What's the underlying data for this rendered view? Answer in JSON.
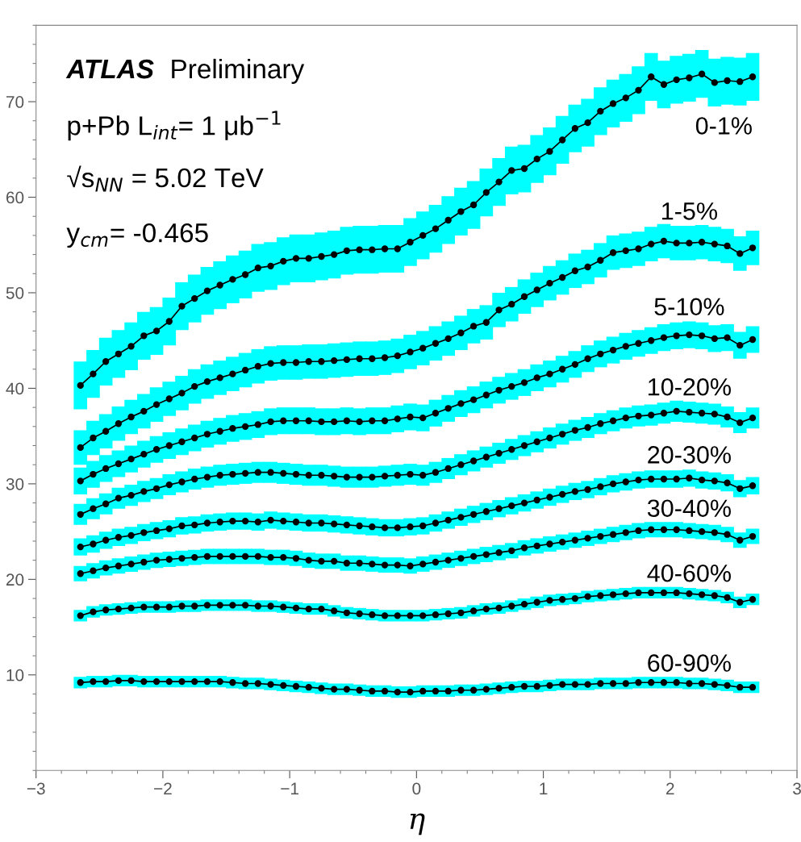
{
  "chart_data": {
    "type": "line",
    "xlabel": "η",
    "annotations": [
      "ATLAS",
      "Preliminary",
      "p+Pb L$_{int}$= 1 μb$^{−1}$",
      "√s$_{NN}$ = 5.02 TeV",
      "y$_{cm}$= -0.465"
    ],
    "x": [
      -2.65,
      -2.55,
      -2.45,
      -2.35,
      -2.25,
      -2.15,
      -2.05,
      -1.95,
      -1.85,
      -1.75,
      -1.65,
      -1.55,
      -1.45,
      -1.35,
      -1.25,
      -1.15,
      -1.05,
      -0.95,
      -0.85,
      -0.75,
      -0.65,
      -0.55,
      -0.45,
      -0.35,
      -0.25,
      -0.15,
      -0.05,
      0.05,
      0.15,
      0.25,
      0.35,
      0.45,
      0.55,
      0.65,
      0.75,
      0.85,
      0.95,
      1.05,
      1.15,
      1.25,
      1.35,
      1.45,
      1.55,
      1.65,
      1.75,
      1.85,
      1.95,
      2.05,
      2.15,
      2.25,
      2.35,
      2.45,
      2.55,
      2.65
    ],
    "series": [
      {
        "name": "0-1%",
        "color": "#000000",
        "values": [
          40.3,
          41.5,
          42.8,
          43.6,
          44.4,
          45.5,
          46.0,
          47.0,
          48.6,
          49.4,
          50.2,
          50.8,
          51.4,
          51.9,
          52.6,
          52.8,
          53.3,
          53.6,
          53.6,
          53.8,
          54.0,
          54.4,
          54.5,
          54.5,
          54.6,
          54.6,
          55.3,
          56.0,
          56.7,
          57.6,
          58.5,
          59.2,
          60.5,
          61.6,
          62.8,
          63.0,
          64.0,
          64.8,
          66.0,
          67.2,
          67.8,
          69.0,
          69.8,
          70.4,
          71.2,
          72.6,
          71.8,
          72.3,
          72.5,
          72.9,
          72.0,
          72.2,
          72.1,
          72.6
        ],
        "errors": [
          2.5,
          2.5,
          2.5,
          2.5,
          2.5,
          2.5,
          2.5,
          2.5,
          2.5,
          2.5,
          2.5,
          2.5,
          2.5,
          2.5,
          2.5,
          2.5,
          2.5,
          2.5,
          2.5,
          2.5,
          2.5,
          2.5,
          2.5,
          2.5,
          2.5,
          2.5,
          2.5,
          2.5,
          2.5,
          2.5,
          2.5,
          2.5,
          2.5,
          2.5,
          2.5,
          2.5,
          2.5,
          2.5,
          2.5,
          2.5,
          2.5,
          2.5,
          2.5,
          2.5,
          2.5,
          2.5,
          2.5,
          2.5,
          2.5,
          2.5,
          2.5,
          2.5,
          2.5,
          2.5
        ]
      },
      {
        "name": "1-5%",
        "color": "#000000",
        "values": [
          33.8,
          34.8,
          35.5,
          36.3,
          37.0,
          37.6,
          38.3,
          38.9,
          39.5,
          40.2,
          40.7,
          41.1,
          41.5,
          41.9,
          42.3,
          42.6,
          42.7,
          42.7,
          42.8,
          42.8,
          42.9,
          43.0,
          43.1,
          43.1,
          43.2,
          43.4,
          43.8,
          44.2,
          44.7,
          45.2,
          45.8,
          46.5,
          46.9,
          48.2,
          48.8,
          49.6,
          50.3,
          51.0,
          51.6,
          52.3,
          52.7,
          53.4,
          54.2,
          54.4,
          54.6,
          55.1,
          55.4,
          55.2,
          55.2,
          55.3,
          55.1,
          54.9,
          54.1,
          54.7
        ],
        "errors": [
          1.8,
          1.8,
          1.8,
          1.8,
          1.8,
          1.8,
          1.8,
          1.8,
          1.8,
          1.8,
          1.8,
          1.8,
          1.8,
          1.8,
          1.8,
          1.8,
          1.8,
          1.8,
          1.8,
          1.8,
          1.8,
          1.8,
          1.8,
          1.8,
          1.8,
          1.8,
          1.8,
          1.8,
          1.8,
          1.8,
          1.8,
          1.8,
          1.8,
          1.8,
          1.8,
          1.8,
          1.8,
          1.8,
          1.8,
          1.8,
          1.8,
          1.8,
          1.8,
          1.8,
          1.8,
          1.8,
          1.8,
          1.8,
          1.8,
          1.8,
          1.8,
          1.8,
          1.8,
          1.8
        ]
      },
      {
        "name": "5-10%",
        "color": "#000000",
        "values": [
          30.3,
          31.0,
          31.6,
          32.1,
          32.6,
          33.1,
          33.6,
          34.0,
          34.4,
          34.8,
          35.2,
          35.5,
          35.8,
          36.0,
          36.2,
          36.5,
          36.6,
          36.6,
          36.6,
          36.5,
          36.5,
          36.6,
          36.5,
          36.6,
          36.6,
          36.8,
          37.0,
          36.9,
          37.4,
          37.9,
          38.4,
          38.8,
          39.3,
          39.8,
          40.2,
          40.6,
          41.1,
          41.5,
          42.0,
          42.5,
          43.1,
          43.6,
          44.0,
          44.4,
          44.7,
          45.0,
          45.3,
          45.5,
          45.6,
          45.5,
          45.2,
          45.3,
          44.5,
          45.1
        ],
        "errors": [
          1.4,
          1.4,
          1.4,
          1.4,
          1.4,
          1.4,
          1.4,
          1.4,
          1.4,
          1.4,
          1.4,
          1.4,
          1.4,
          1.4,
          1.4,
          1.4,
          1.4,
          1.4,
          1.4,
          1.4,
          1.4,
          1.4,
          1.4,
          1.4,
          1.4,
          1.4,
          1.4,
          1.4,
          1.4,
          1.4,
          1.4,
          1.4,
          1.4,
          1.4,
          1.4,
          1.4,
          1.4,
          1.4,
          1.4,
          1.4,
          1.4,
          1.4,
          1.4,
          1.4,
          1.4,
          1.4,
          1.4,
          1.4,
          1.4,
          1.4,
          1.4,
          1.4,
          1.4,
          1.4
        ]
      },
      {
        "name": "10-20%",
        "color": "#000000",
        "values": [
          26.8,
          27.4,
          27.9,
          28.5,
          28.8,
          29.2,
          29.5,
          29.9,
          30.2,
          30.5,
          30.7,
          30.9,
          31.0,
          31.1,
          31.2,
          31.2,
          31.1,
          31.0,
          30.9,
          30.9,
          30.8,
          30.7,
          30.7,
          30.7,
          30.8,
          30.9,
          31.0,
          30.9,
          31.2,
          31.6,
          32.0,
          32.4,
          32.8,
          33.2,
          33.6,
          34.0,
          34.4,
          34.8,
          35.2,
          35.6,
          35.9,
          36.3,
          36.6,
          36.9,
          37.1,
          37.2,
          37.4,
          37.6,
          37.5,
          37.4,
          37.3,
          37.0,
          36.4,
          36.9
        ],
        "errors": [
          1.1,
          1.1,
          1.1,
          1.1,
          1.1,
          1.1,
          1.1,
          1.1,
          1.1,
          1.1,
          1.1,
          1.1,
          1.1,
          1.1,
          1.1,
          1.1,
          1.1,
          1.1,
          1.1,
          1.1,
          1.1,
          1.1,
          1.1,
          1.1,
          1.1,
          1.1,
          1.1,
          1.1,
          1.1,
          1.1,
          1.1,
          1.1,
          1.1,
          1.1,
          1.1,
          1.1,
          1.1,
          1.1,
          1.1,
          1.1,
          1.1,
          1.1,
          1.1,
          1.1,
          1.1,
          1.1,
          1.1,
          1.1,
          1.1,
          1.1,
          1.1,
          1.1,
          1.1,
          1.1
        ]
      },
      {
        "name": "20-30%",
        "color": "#000000",
        "values": [
          23.4,
          23.7,
          24.1,
          24.4,
          24.6,
          24.9,
          25.1,
          25.3,
          25.6,
          25.7,
          25.9,
          26.0,
          26.1,
          26.1,
          26.0,
          26.2,
          26.1,
          26.0,
          25.9,
          25.9,
          25.8,
          25.7,
          25.6,
          25.5,
          25.4,
          25.4,
          25.5,
          25.6,
          25.9,
          26.2,
          26.5,
          26.8,
          27.1,
          27.4,
          27.7,
          28.0,
          28.3,
          28.6,
          28.9,
          29.2,
          29.4,
          29.7,
          30.0,
          30.2,
          30.4,
          30.5,
          30.5,
          30.5,
          30.6,
          30.4,
          30.3,
          30.1,
          29.5,
          29.8
        ],
        "errors": [
          0.9,
          0.9,
          0.9,
          0.9,
          0.9,
          0.9,
          0.9,
          0.9,
          0.9,
          0.9,
          0.9,
          0.9,
          0.9,
          0.9,
          0.9,
          0.9,
          0.9,
          0.9,
          0.9,
          0.9,
          0.9,
          0.9,
          0.9,
          0.9,
          0.9,
          0.9,
          0.9,
          0.9,
          0.9,
          0.9,
          0.9,
          0.9,
          0.9,
          0.9,
          0.9,
          0.9,
          0.9,
          0.9,
          0.9,
          0.9,
          0.9,
          0.9,
          0.9,
          0.9,
          0.9,
          0.9,
          0.9,
          0.9,
          0.9,
          0.9,
          0.9,
          0.9,
          0.9,
          0.9
        ]
      },
      {
        "name": "30-40%",
        "color": "#000000",
        "values": [
          20.6,
          20.9,
          21.2,
          21.4,
          21.6,
          21.8,
          22.0,
          22.1,
          22.2,
          22.3,
          22.4,
          22.4,
          22.4,
          22.4,
          22.4,
          22.3,
          22.3,
          22.2,
          22.0,
          21.9,
          21.9,
          21.7,
          21.7,
          21.6,
          21.5,
          21.5,
          21.4,
          21.6,
          21.8,
          22.0,
          22.2,
          22.4,
          22.6,
          22.8,
          23.0,
          23.3,
          23.5,
          23.7,
          23.9,
          24.1,
          24.3,
          24.5,
          24.7,
          24.9,
          25.1,
          25.2,
          25.2,
          25.2,
          25.1,
          25.0,
          24.9,
          24.7,
          24.1,
          24.5
        ],
        "errors": [
          0.8,
          0.8,
          0.8,
          0.8,
          0.8,
          0.8,
          0.8,
          0.8,
          0.8,
          0.8,
          0.8,
          0.8,
          0.8,
          0.8,
          0.8,
          0.8,
          0.8,
          0.8,
          0.8,
          0.8,
          0.8,
          0.8,
          0.8,
          0.8,
          0.8,
          0.8,
          0.8,
          0.8,
          0.8,
          0.8,
          0.8,
          0.8,
          0.8,
          0.8,
          0.8,
          0.8,
          0.8,
          0.8,
          0.8,
          0.8,
          0.8,
          0.8,
          0.8,
          0.8,
          0.8,
          0.8,
          0.8,
          0.8,
          0.8,
          0.8,
          0.8,
          0.8,
          0.8,
          0.8
        ]
      },
      {
        "name": "40-60%",
        "color": "#000000",
        "values": [
          16.2,
          16.6,
          16.8,
          16.9,
          17.0,
          17.1,
          17.1,
          17.1,
          17.2,
          17.2,
          17.3,
          17.3,
          17.3,
          17.3,
          17.2,
          17.2,
          17.1,
          17.0,
          16.9,
          16.9,
          16.7,
          16.5,
          16.4,
          16.3,
          16.2,
          16.2,
          16.2,
          16.2,
          16.3,
          16.4,
          16.5,
          16.7,
          16.9,
          17.0,
          17.2,
          17.4,
          17.6,
          17.8,
          17.9,
          18.0,
          18.2,
          18.3,
          18.4,
          18.5,
          18.6,
          18.6,
          18.6,
          18.6,
          18.5,
          18.4,
          18.3,
          18.1,
          17.6,
          17.9
        ],
        "errors": [
          0.6,
          0.6,
          0.6,
          0.6,
          0.6,
          0.6,
          0.6,
          0.6,
          0.6,
          0.6,
          0.6,
          0.6,
          0.6,
          0.6,
          0.6,
          0.6,
          0.6,
          0.6,
          0.6,
          0.6,
          0.6,
          0.6,
          0.6,
          0.6,
          0.6,
          0.6,
          0.6,
          0.6,
          0.6,
          0.6,
          0.6,
          0.6,
          0.6,
          0.6,
          0.6,
          0.6,
          0.6,
          0.6,
          0.6,
          0.6,
          0.6,
          0.6,
          0.6,
          0.6,
          0.6,
          0.6,
          0.6,
          0.6,
          0.6,
          0.6,
          0.6,
          0.6,
          0.6,
          0.6
        ]
      },
      {
        "name": "60-90%",
        "color": "#000000",
        "values": [
          9.2,
          9.3,
          9.3,
          9.4,
          9.4,
          9.3,
          9.3,
          9.3,
          9.3,
          9.3,
          9.3,
          9.3,
          9.2,
          9.1,
          9.1,
          9.0,
          8.9,
          8.8,
          8.7,
          8.6,
          8.5,
          8.5,
          8.4,
          8.3,
          8.3,
          8.2,
          8.2,
          8.3,
          8.3,
          8.3,
          8.4,
          8.4,
          8.5,
          8.6,
          8.7,
          8.8,
          8.8,
          8.9,
          9.0,
          9.0,
          9.0,
          9.1,
          9.1,
          9.1,
          9.2,
          9.2,
          9.2,
          9.2,
          9.1,
          9.1,
          9.0,
          8.9,
          8.7,
          8.7
        ],
        "errors": [
          0.6,
          0.6,
          0.6,
          0.6,
          0.6,
          0.6,
          0.6,
          0.6,
          0.6,
          0.6,
          0.6,
          0.6,
          0.6,
          0.6,
          0.6,
          0.6,
          0.6,
          0.6,
          0.6,
          0.6,
          0.6,
          0.6,
          0.6,
          0.6,
          0.6,
          0.6,
          0.6,
          0.6,
          0.6,
          0.6,
          0.6,
          0.6,
          0.6,
          0.6,
          0.6,
          0.6,
          0.6,
          0.6,
          0.6,
          0.6,
          0.6,
          0.6,
          0.6,
          0.6,
          0.6,
          0.6,
          0.6,
          0.6,
          0.6,
          0.6,
          0.6,
          0.6,
          0.6,
          0.6
        ]
      }
    ],
    "xlim": [
      -3,
      3
    ],
    "xticks": [
      {
        "value": -3,
        "label": "−3"
      },
      {
        "value": -2,
        "label": "−2"
      },
      {
        "value": -1,
        "label": "−1"
      },
      0,
      1,
      2,
      3
    ],
    "ylim": [
      0,
      78
    ],
    "yticks": [
      10,
      20,
      30,
      40,
      50,
      60,
      70
    ],
    "marker": "circle",
    "line_style": "solid"
  }
}
